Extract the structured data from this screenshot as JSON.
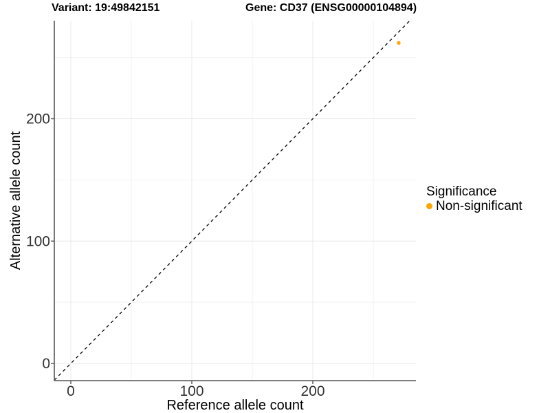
{
  "figure": {
    "title_left": "Variant: 19:49842151",
    "title_right": "Gene: CD37 (ENSG00000104894)"
  },
  "chart_data": {
    "type": "scatter",
    "title": "Variant: 19:49842151  /  Gene: CD37 (ENSG00000104894)",
    "xlabel": "Reference allele count",
    "ylabel": "Alternative allele count",
    "x_ticks": [
      0,
      100,
      200
    ],
    "y_ticks": [
      0,
      100,
      200
    ],
    "x_minor_ticks": [
      50,
      150,
      250
    ],
    "y_minor_ticks": [
      50,
      150,
      250
    ],
    "xlim": [
      -14,
      285
    ],
    "ylim": [
      -14,
      280
    ],
    "grid": "major+minor",
    "points": [
      {
        "x": 271,
        "y": 262,
        "series": "Non-significant"
      }
    ],
    "abline": {
      "slope": 1,
      "intercept": 0,
      "style": "dashed",
      "color": "#000000"
    },
    "legend": {
      "title": "Significance",
      "position": "right",
      "entries": [
        {
          "label": "Non-significant",
          "color": "#FFA500"
        }
      ]
    },
    "colors": {
      "point": "#FFA500",
      "grid_major": "#E8E8E8",
      "grid_minor": "#F2F2F2",
      "axis_line": "#555555",
      "tick_text": "#333333",
      "label_text": "#000000"
    }
  }
}
